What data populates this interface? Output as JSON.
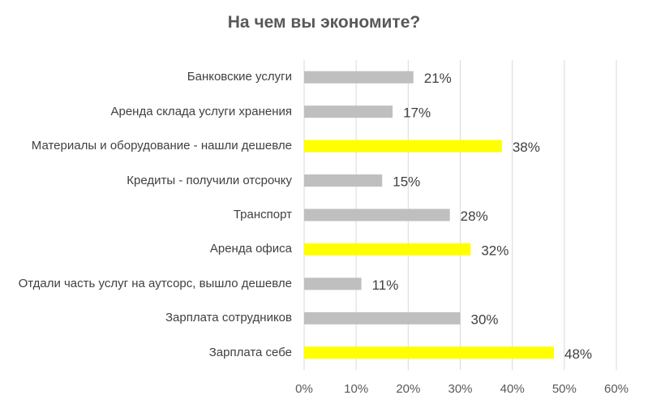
{
  "chart_data": {
    "type": "bar",
    "orientation": "horizontal",
    "title": "На чем вы экономите?",
    "categories": [
      "Банковские услуги",
      "Аренда склада услуги хранения",
      "Материалы и оборудование - нашли дешевле",
      "Кредиты - получили отсрочку",
      "Транспорт",
      "Аренда офиса",
      "Отдали часть услуг на аутсорс, вышло дешевле",
      "Зарплата сотрудников",
      "Зарплата себе"
    ],
    "values": [
      21,
      17,
      38,
      15,
      28,
      32,
      11,
      30,
      48
    ],
    "value_labels": [
      "21%",
      "17%",
      "38%",
      "15%",
      "28%",
      "32%",
      "11%",
      "30%",
      "48%"
    ],
    "highlighted": [
      false,
      false,
      true,
      false,
      false,
      true,
      false,
      false,
      true
    ],
    "xlim": [
      0,
      60
    ],
    "x_ticks": [
      "0%",
      "10%",
      "20%",
      "30%",
      "40%",
      "50%",
      "60%"
    ],
    "grid": true,
    "colors": {
      "default": "#bfbfbf",
      "highlight": "#ffff00",
      "grid": "#d9d9d9"
    }
  }
}
